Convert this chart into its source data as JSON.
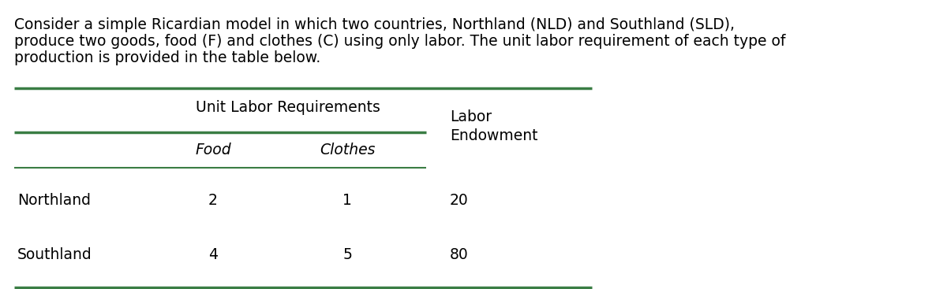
{
  "description_lines": [
    "Consider a simple Ricardian model in which two countries, Northland (NLD) and Southland (SLD),",
    "produce two goods, food (F) and clothes (C) using only labor. The unit labor requirement of each type of",
    "production is provided in the table below."
  ],
  "header1_label": "Unit Labor Requirements",
  "header2_label": "Labor\nEndowment",
  "subheader_food": "Food",
  "subheader_clothes": "Clothes",
  "row1_label": "Northland",
  "row2_label": "Southland",
  "row1_food": "2",
  "row1_clothes": "1",
  "row1_endow": "20",
  "row2_food": "4",
  "row2_clothes": "5",
  "row2_endow": "80",
  "line_color": "#3a7d44",
  "text_color": "#000000",
  "bg_color": "#ffffff",
  "font_size_desc": 13.5,
  "font_size_header": 13.5,
  "font_size_body": 13.5,
  "fig_width": 12.0,
  "fig_height": 3.67,
  "dpi": 100
}
